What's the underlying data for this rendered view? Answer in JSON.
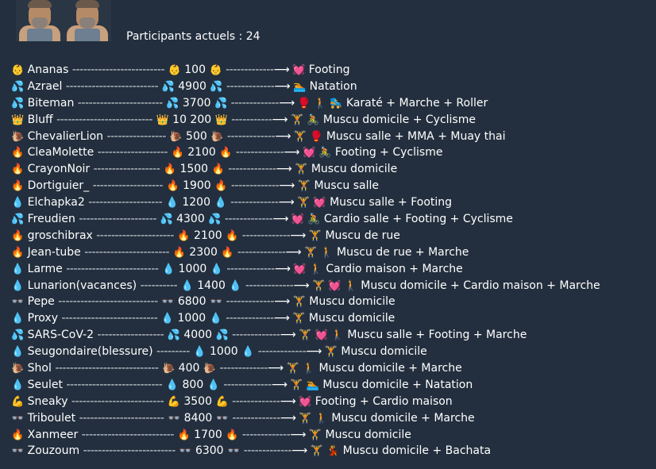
{
  "header": {
    "participants": "Participants actuels : 24"
  },
  "rows": [
    {
      "name": "Ananas",
      "dashes": "-------------------------",
      "emoji": "👶",
      "score": "100",
      "dashes2": "-------------",
      "activity_icons": "💓",
      "activity": "Footing"
    },
    {
      "name": "Azrael",
      "dashes": "-------------------------",
      "emoji": "💦",
      "score": "4900",
      "dashes2": "-------------",
      "activity_icons": "🏊",
      "activity": "Natation"
    },
    {
      "name": "Biteman",
      "dashes": "-----------------------",
      "emoji": "💦",
      "score": "3700",
      "dashes2": "-------------",
      "activity_icons": "🥊 🚶 🛼",
      "activity": "Karaté + Marche + Roller"
    },
    {
      "name": "Bluff",
      "dashes": "--------------------------",
      "emoji": "👑",
      "score": "10 200",
      "dashes2": "-----------",
      "activity_icons": "🏋 🚴",
      "activity": "Muscu domicile + Cyclisme"
    },
    {
      "name": "ChevalierLion",
      "dashes": "----------------",
      "emoji": "🐌",
      "score": "500",
      "dashes2": "-------------",
      "activity_icons": "🏋 🥊",
      "activity": "Muscu salle + MMA + Muay thai"
    },
    {
      "name": "CleaMolette",
      "dashes": "-------------------",
      "emoji": "🔥",
      "score": "2100",
      "dashes2": "-------------",
      "activity_icons": "💓 🚴",
      "activity": "Footing + Cyclisme"
    },
    {
      "name": "CrayonNoir",
      "dashes": "------------------",
      "emoji": "🔥",
      "score": "1500",
      "dashes2": "-------------",
      "activity_icons": "🏋",
      "activity": "Muscu domicile"
    },
    {
      "name": "Dortiguier_",
      "dashes": "-------------------",
      "emoji": "🔥",
      "score": "1900",
      "dashes2": "-------------",
      "activity_icons": "🏋",
      "activity": "Muscu salle"
    },
    {
      "name": "Elchapka2",
      "dashes": "--------------------",
      "emoji": "💧",
      "score": "1200",
      "dashes2": "-------------",
      "activity_icons": "🏋 💓",
      "activity": "Muscu salle + Footing"
    },
    {
      "name": "Freudien",
      "dashes": "---------------------",
      "emoji": "💦",
      "score": "4300",
      "dashes2": "-------------",
      "activity_icons": "💓 🚴",
      "activity": "Cardio salle + Footing + Cyclisme"
    },
    {
      "name": "groschibrax",
      "dashes": "---------------------",
      "emoji": "🔥",
      "score": "2100",
      "dashes2": "-------------",
      "activity_icons": "🏋",
      "activity": "Muscu de rue"
    },
    {
      "name": "Jean-tube",
      "dashes": "-----------------------",
      "emoji": "🔥",
      "score": "2300",
      "dashes2": "-------------",
      "activity_icons": "🏋 🚶",
      "activity": "Muscu de rue + Marche"
    },
    {
      "name": "Larme",
      "dashes": "-------------------------",
      "emoji": "💧",
      "score": "1000",
      "dashes2": "-------------",
      "activity_icons": "💓 🚶",
      "activity": "Cardio maison + Marche"
    },
    {
      "name": "Lunarion(vacances)",
      "dashes": "----------",
      "emoji": "💧",
      "score": "1400",
      "dashes2": "-------------",
      "activity_icons": "🏋 💓 🚶",
      "activity": "Muscu domicile + Cardio maison + Marche"
    },
    {
      "name": "Pepe",
      "dashes": "---------------------------",
      "emoji": "👓",
      "score": "6800",
      "dashes2": "-------------",
      "activity_icons": "🏋",
      "activity": "Muscu domicile"
    },
    {
      "name": "Proxy",
      "dashes": "--------------------------",
      "emoji": "💧",
      "score": "1000",
      "dashes2": "-------------",
      "activity_icons": "🏋",
      "activity": "Muscu domicile"
    },
    {
      "name": "SARS-CoV-2",
      "dashes": "------------------",
      "emoji": "💦",
      "score": "4000",
      "dashes2": "-------------",
      "activity_icons": "🏋 💓 🚶",
      "activity": "Muscu salle + Footing + Marche"
    },
    {
      "name": "Seugondaire(blessure)",
      "dashes": "---------",
      "emoji": "💧",
      "score": "1000",
      "dashes2": "-------------",
      "activity_icons": "🏋",
      "activity": "Muscu domicile"
    },
    {
      "name": "Shol",
      "dashes": "----------------------------",
      "emoji": "🐌",
      "score": "400",
      "dashes2": "-------------",
      "activity_icons": "🏋 🚶",
      "activity": "Muscu domicile + Marche"
    },
    {
      "name": "Seulet",
      "dashes": "--------------------------",
      "emoji": "💧",
      "score": "800",
      "dashes2": "-------------",
      "activity_icons": "🏋 🏊",
      "activity": "Muscu domicile + Natation"
    },
    {
      "name": "Sneaky",
      "dashes": "-------------------------",
      "emoji": "💪",
      "score": "3500",
      "dashes2": "-------------",
      "activity_icons": "💓",
      "activity": "Footing + Cardio maison"
    },
    {
      "name": "Triboulet",
      "dashes": "-----------------------",
      "emoji": "👓",
      "score": "8400",
      "dashes2": "-------------",
      "activity_icons": "🏋 🚶",
      "activity": "Muscu domicile + Marche"
    },
    {
      "name": "Xanmeer",
      "dashes": "-------------------------",
      "emoji": "🔥",
      "score": "1700",
      "dashes2": "-------------",
      "activity_icons": "🏋",
      "activity": "Muscu domicile"
    },
    {
      "name": "Zouzoum",
      "dashes": "-------------------------",
      "emoji": "👓",
      "score": "6300",
      "dashes2": "-------------",
      "activity_icons": "🏋 💃",
      "activity": "Muscu domicile + Bachata"
    }
  ]
}
